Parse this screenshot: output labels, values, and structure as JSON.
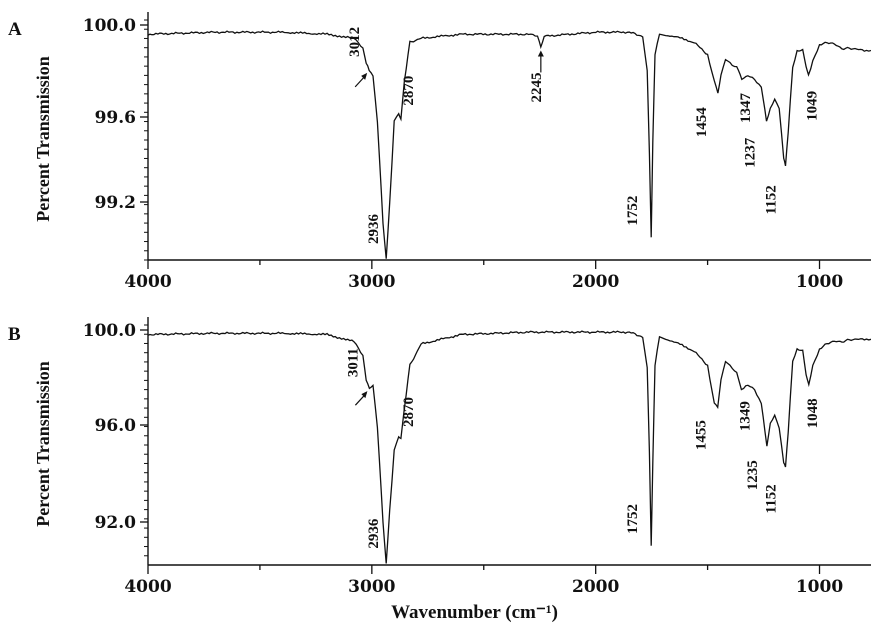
{
  "chart_data": [
    {
      "type": "line",
      "panel_label": "A",
      "ylabel": "Percent Transmission",
      "xlabel": "",
      "xlim": [
        4000,
        770
      ],
      "ylim": [
        98.87,
        100.05
      ],
      "x_ticks": [
        "4000",
        "3000",
        "2000",
        "1000"
      ],
      "y_ticks": [
        "100.0",
        "99.6",
        "99.2"
      ],
      "series": [
        {
          "points": [
            [
              4000,
              99.98
            ],
            [
              3700,
              99.99
            ],
            [
              3400,
              99.99
            ],
            [
              3200,
              99.98
            ],
            [
              3080,
              99.96
            ],
            [
              3040,
              99.91
            ],
            [
              3025,
              99.84
            ],
            [
              3012,
              99.8
            ],
            [
              2995,
              99.78
            ],
            [
              2975,
              99.55
            ],
            [
              2950,
              99.05
            ],
            [
              2936,
              98.88
            ],
            [
              2920,
              99.15
            ],
            [
              2900,
              99.55
            ],
            [
              2880,
              99.59
            ],
            [
              2870,
              99.56
            ],
            [
              2855,
              99.75
            ],
            [
              2830,
              99.94
            ],
            [
              2780,
              99.96
            ],
            [
              2600,
              99.98
            ],
            [
              2300,
              99.98
            ],
            [
              2260,
              99.97
            ],
            [
              2245,
              99.92
            ],
            [
              2230,
              99.97
            ],
            [
              2000,
              99.99
            ],
            [
              1850,
              99.99
            ],
            [
              1790,
              99.97
            ],
            [
              1770,
              99.8
            ],
            [
              1760,
              99.4
            ],
            [
              1752,
              98.98
            ],
            [
              1745,
              99.45
            ],
            [
              1735,
              99.88
            ],
            [
              1715,
              99.98
            ],
            [
              1650,
              99.97
            ],
            [
              1560,
              99.94
            ],
            [
              1500,
              99.88
            ],
            [
              1470,
              99.75
            ],
            [
              1454,
              99.69
            ],
            [
              1440,
              99.78
            ],
            [
              1420,
              99.86
            ],
            [
              1390,
              99.83
            ],
            [
              1370,
              99.82
            ],
            [
              1347,
              99.76
            ],
            [
              1320,
              99.78
            ],
            [
              1290,
              99.76
            ],
            [
              1260,
              99.72
            ],
            [
              1237,
              99.55
            ],
            [
              1220,
              99.62
            ],
            [
              1200,
              99.66
            ],
            [
              1180,
              99.62
            ],
            [
              1160,
              99.37
            ],
            [
              1152,
              99.33
            ],
            [
              1140,
              99.5
            ],
            [
              1120,
              99.82
            ],
            [
              1100,
              99.9
            ],
            [
              1075,
              99.9
            ],
            [
              1060,
              99.82
            ],
            [
              1049,
              99.78
            ],
            [
              1030,
              99.85
            ],
            [
              1000,
              99.93
            ],
            [
              950,
              99.94
            ],
            [
              900,
              99.91
            ],
            [
              850,
              99.91
            ],
            [
              800,
              99.9
            ],
            [
              770,
              99.9
            ]
          ]
        }
      ],
      "peak_labels": [
        {
          "label": "3012",
          "x": 3012,
          "y": 99.8,
          "arrow": true
        },
        {
          "label": "2936",
          "x": 2936,
          "y": 98.88
        },
        {
          "label": "2870",
          "x": 2870,
          "y": 99.56
        },
        {
          "label": "2245",
          "x": 2245,
          "y": 99.92,
          "arrow": true
        },
        {
          "label": "1752",
          "x": 1752,
          "y": 98.98
        },
        {
          "label": "1454",
          "x": 1454,
          "y": 99.69
        },
        {
          "label": "1347",
          "x": 1347,
          "y": 99.76
        },
        {
          "label": "1237",
          "x": 1237,
          "y": 99.55
        },
        {
          "label": "1152",
          "x": 1152,
          "y": 99.33
        },
        {
          "label": "1049",
          "x": 1049,
          "y": 99.78
        }
      ]
    },
    {
      "type": "line",
      "panel_label": "B",
      "ylabel": "Percent Transmission",
      "xlabel": "Wavenumber (cm⁻¹)",
      "xlim": [
        4000,
        770
      ],
      "ylim": [
        90.2,
        100.3
      ],
      "x_ticks": [
        "4000",
        "3000",
        "2000",
        "1000"
      ],
      "y_ticks": [
        "100.0",
        "96.0",
        "92.0"
      ],
      "series": [
        {
          "points": [
            [
              4000,
              99.9
            ],
            [
              3700,
              99.95
            ],
            [
              3400,
              99.95
            ],
            [
              3200,
              99.9
            ],
            [
              3080,
              99.6
            ],
            [
              3040,
              99.0
            ],
            [
              3025,
              98.0
            ],
            [
              3011,
              97.6
            ],
            [
              2995,
              97.8
            ],
            [
              2975,
              96.0
            ],
            [
              2950,
              92.0
            ],
            [
              2936,
              90.3
            ],
            [
              2920,
              92.5
            ],
            [
              2900,
              95.0
            ],
            [
              2880,
              95.6
            ],
            [
              2870,
              95.5
            ],
            [
              2855,
              96.8
            ],
            [
              2830,
              98.6
            ],
            [
              2780,
              99.5
            ],
            [
              2600,
              99.9
            ],
            [
              2300,
              100.0
            ],
            [
              2000,
              100.0
            ],
            [
              1850,
              100.0
            ],
            [
              1790,
              99.8
            ],
            [
              1770,
              98.5
            ],
            [
              1760,
              95.0
            ],
            [
              1752,
              91.0
            ],
            [
              1745,
              94.5
            ],
            [
              1735,
              98.6
            ],
            [
              1715,
              99.8
            ],
            [
              1650,
              99.6
            ],
            [
              1560,
              99.2
            ],
            [
              1500,
              98.6
            ],
            [
              1470,
              97.0
            ],
            [
              1455,
              96.8
            ],
            [
              1440,
              98.0
            ],
            [
              1420,
              98.8
            ],
            [
              1390,
              98.5
            ],
            [
              1370,
              98.3
            ],
            [
              1349,
              97.6
            ],
            [
              1320,
              97.8
            ],
            [
              1290,
              97.6
            ],
            [
              1260,
              97.0
            ],
            [
              1235,
              95.2
            ],
            [
              1220,
              96.2
            ],
            [
              1200,
              96.5
            ],
            [
              1180,
              96.0
            ],
            [
              1160,
              94.5
            ],
            [
              1152,
              94.3
            ],
            [
              1140,
              95.8
            ],
            [
              1120,
              98.8
            ],
            [
              1100,
              99.3
            ],
            [
              1075,
              99.2
            ],
            [
              1060,
              98.2
            ],
            [
              1048,
              97.8
            ],
            [
              1030,
              98.6
            ],
            [
              1000,
              99.3
            ],
            [
              950,
              99.6
            ],
            [
              900,
              99.6
            ],
            [
              850,
              99.7
            ],
            [
              800,
              99.7
            ],
            [
              770,
              99.7
            ]
          ]
        }
      ],
      "peak_labels": [
        {
          "label": "3011",
          "x": 3011,
          "y": 97.6,
          "arrow": true
        },
        {
          "label": "2936",
          "x": 2936,
          "y": 90.3
        },
        {
          "label": "2870",
          "x": 2870,
          "y": 95.5
        },
        {
          "label": "1752",
          "x": 1752,
          "y": 91.0
        },
        {
          "label": "1455",
          "x": 1455,
          "y": 96.8
        },
        {
          "label": "1349",
          "x": 1349,
          "y": 97.6
        },
        {
          "label": "1235",
          "x": 1235,
          "y": 95.2
        },
        {
          "label": "1152",
          "x": 1152,
          "y": 94.3
        },
        {
          "label": "1048",
          "x": 1048,
          "y": 97.8
        }
      ]
    }
  ]
}
